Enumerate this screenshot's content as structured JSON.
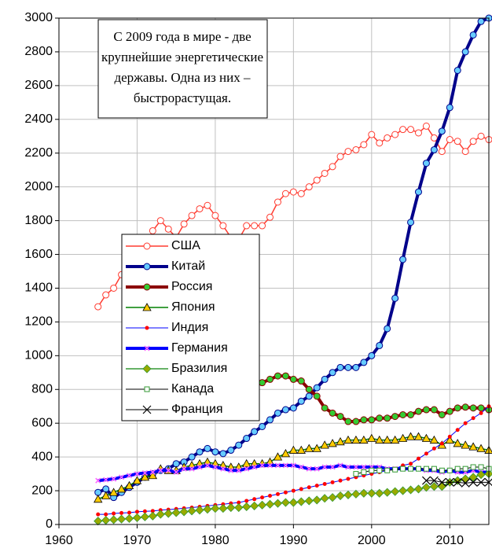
{
  "chart_data": {
    "type": "line",
    "annotation": [
      "С 2009 года в мире - две",
      "крупнейшие энергетические",
      "державы. Одна из них –",
      "быстрорастущая."
    ],
    "x": [
      1965,
      1966,
      1967,
      1968,
      1969,
      1970,
      1971,
      1972,
      1973,
      1974,
      1975,
      1976,
      1977,
      1978,
      1979,
      1980,
      1981,
      1982,
      1983,
      1984,
      1985,
      1986,
      1987,
      1988,
      1989,
      1990,
      1991,
      1992,
      1993,
      1994,
      1995,
      1996,
      1997,
      1998,
      1999,
      2000,
      2001,
      2002,
      2003,
      2004,
      2005,
      2006,
      2007,
      2008,
      2009,
      2010,
      2011,
      2012,
      2013,
      2014,
      2015
    ],
    "xlim": [
      1960,
      2015
    ],
    "xticks": [
      1960,
      1970,
      1980,
      1990,
      2000,
      2010
    ],
    "ylim": [
      0,
      3000
    ],
    "yticks": [
      0,
      200,
      400,
      600,
      800,
      1000,
      1200,
      1400,
      1600,
      1800,
      2000,
      2200,
      2400,
      2600,
      2800,
      3000
    ],
    "grid": true,
    "legend": "left",
    "series": [
      {
        "name": "США",
        "color": "#ff3b30",
        "line_width": 1.5,
        "marker": "circle",
        "marker_color": "#ffffff",
        "values": [
          1290,
          1360,
          1400,
          1480,
          1570,
          1630,
          1650,
          1740,
          1800,
          1750,
          1700,
          1780,
          1830,
          1870,
          1890,
          1830,
          1770,
          1700,
          1690,
          1770,
          1770,
          1770,
          1820,
          1910,
          1960,
          1970,
          1960,
          2000,
          2040,
          2080,
          2120,
          2180,
          2210,
          2220,
          2250,
          2310,
          2260,
          2290,
          2310,
          2340,
          2340,
          2320,
          2360,
          2290,
          2210,
          2280,
          2270,
          2210,
          2270,
          2300,
          2280
        ]
      },
      {
        "name": "Китай",
        "color": "#00008b",
        "line_width": 4,
        "marker": "circle",
        "marker_color": "#66ccff",
        "values": [
          190,
          210,
          160,
          190,
          220,
          250,
          280,
          300,
          320,
          330,
          360,
          370,
          400,
          430,
          450,
          430,
          420,
          440,
          470,
          510,
          550,
          580,
          620,
          660,
          680,
          690,
          730,
          760,
          810,
          860,
          900,
          930,
          930,
          930,
          960,
          1000,
          1060,
          1160,
          1340,
          1570,
          1790,
          1970,
          2140,
          2220,
          2330,
          2470,
          2690,
          2800,
          2900,
          2980,
          3000
        ]
      },
      {
        "name": "Россия",
        "color": "#8b0000",
        "line_width": 4,
        "marker": "circle",
        "marker_color": "#33cc33",
        "values": [
          null,
          null,
          null,
          null,
          null,
          null,
          null,
          null,
          null,
          null,
          null,
          null,
          null,
          null,
          null,
          null,
          null,
          null,
          null,
          null,
          820,
          840,
          860,
          880,
          880,
          860,
          850,
          800,
          760,
          690,
          660,
          640,
          610,
          610,
          620,
          620,
          630,
          630,
          640,
          650,
          650,
          670,
          680,
          680,
          650,
          670,
          690,
          695,
          690,
          690,
          680
        ]
      },
      {
        "name": "Япония",
        "color": "#008000",
        "line_width": 1.5,
        "marker": "triangle",
        "marker_color": "#ffcc00",
        "values": [
          150,
          170,
          190,
          210,
          230,
          260,
          280,
          290,
          330,
          320,
          320,
          340,
          350,
          360,
          370,
          360,
          350,
          340,
          340,
          360,
          360,
          360,
          370,
          400,
          420,
          440,
          440,
          450,
          450,
          470,
          480,
          490,
          500,
          500,
          500,
          510,
          500,
          500,
          500,
          510,
          520,
          520,
          510,
          500,
          470,
          500,
          480,
          470,
          460,
          450,
          440
        ]
      },
      {
        "name": "Индия",
        "color": "#0000ff",
        "line_width": 1,
        "marker": "dot",
        "marker_color": "#ff0000",
        "values": [
          60,
          60,
          65,
          68,
          70,
          75,
          78,
          80,
          85,
          88,
          92,
          96,
          100,
          105,
          110,
          115,
          120,
          125,
          130,
          140,
          150,
          160,
          170,
          180,
          190,
          200,
          210,
          220,
          230,
          240,
          250,
          260,
          270,
          280,
          290,
          300,
          310,
          320,
          330,
          350,
          360,
          390,
          420,
          450,
          480,
          520,
          560,
          600,
          630,
          660,
          700
        ]
      },
      {
        "name": "Германия",
        "color": "#0000ff",
        "line_width": 4,
        "marker": "x-dash",
        "marker_color": "#ff66ff",
        "values": [
          260,
          265,
          270,
          280,
          290,
          300,
          305,
          310,
          320,
          320,
          310,
          330,
          330,
          340,
          350,
          340,
          330,
          320,
          320,
          330,
          340,
          350,
          350,
          350,
          350,
          350,
          340,
          330,
          330,
          340,
          340,
          350,
          340,
          340,
          340,
          340,
          340,
          330,
          330,
          330,
          330,
          330,
          320,
          320,
          310,
          320,
          310,
          310,
          320,
          310,
          310
        ]
      },
      {
        "name": "Бразилия",
        "color": "#339933",
        "line_width": 1.5,
        "marker": "diamond",
        "marker_color": "#99aa00",
        "values": [
          20,
          25,
          28,
          32,
          35,
          40,
          45,
          50,
          60,
          65,
          70,
          75,
          80,
          85,
          90,
          95,
          95,
          100,
          100,
          105,
          110,
          115,
          120,
          125,
          130,
          130,
          135,
          140,
          145,
          155,
          160,
          170,
          175,
          180,
          185,
          185,
          185,
          190,
          195,
          200,
          205,
          210,
          220,
          225,
          225,
          250,
          260,
          270,
          280,
          295,
          300
        ]
      },
      {
        "name": "Канада",
        "color": "#000000",
        "line_width": 1,
        "marker": "square",
        "marker_color": "#ffffff",
        "values": [
          null,
          null,
          null,
          null,
          null,
          null,
          null,
          null,
          null,
          null,
          null,
          null,
          null,
          null,
          null,
          null,
          null,
          null,
          null,
          null,
          null,
          null,
          null,
          null,
          null,
          null,
          null,
          null,
          null,
          null,
          null,
          null,
          null,
          300,
          310,
          320,
          320,
          320,
          325,
          330,
          330,
          330,
          330,
          330,
          320,
          320,
          330,
          330,
          340,
          340,
          330
        ]
      },
      {
        "name": "Франция",
        "color": "#000000",
        "line_width": 1,
        "marker": "x",
        "marker_color": "#000000",
        "values": [
          null,
          null,
          null,
          null,
          null,
          null,
          null,
          null,
          null,
          null,
          null,
          null,
          null,
          null,
          null,
          null,
          null,
          null,
          null,
          null,
          null,
          null,
          null,
          null,
          null,
          null,
          null,
          null,
          null,
          null,
          null,
          null,
          null,
          null,
          null,
          null,
          null,
          null,
          null,
          null,
          null,
          null,
          260,
          260,
          250,
          250,
          250,
          245,
          250,
          250,
          250
        ]
      }
    ]
  }
}
